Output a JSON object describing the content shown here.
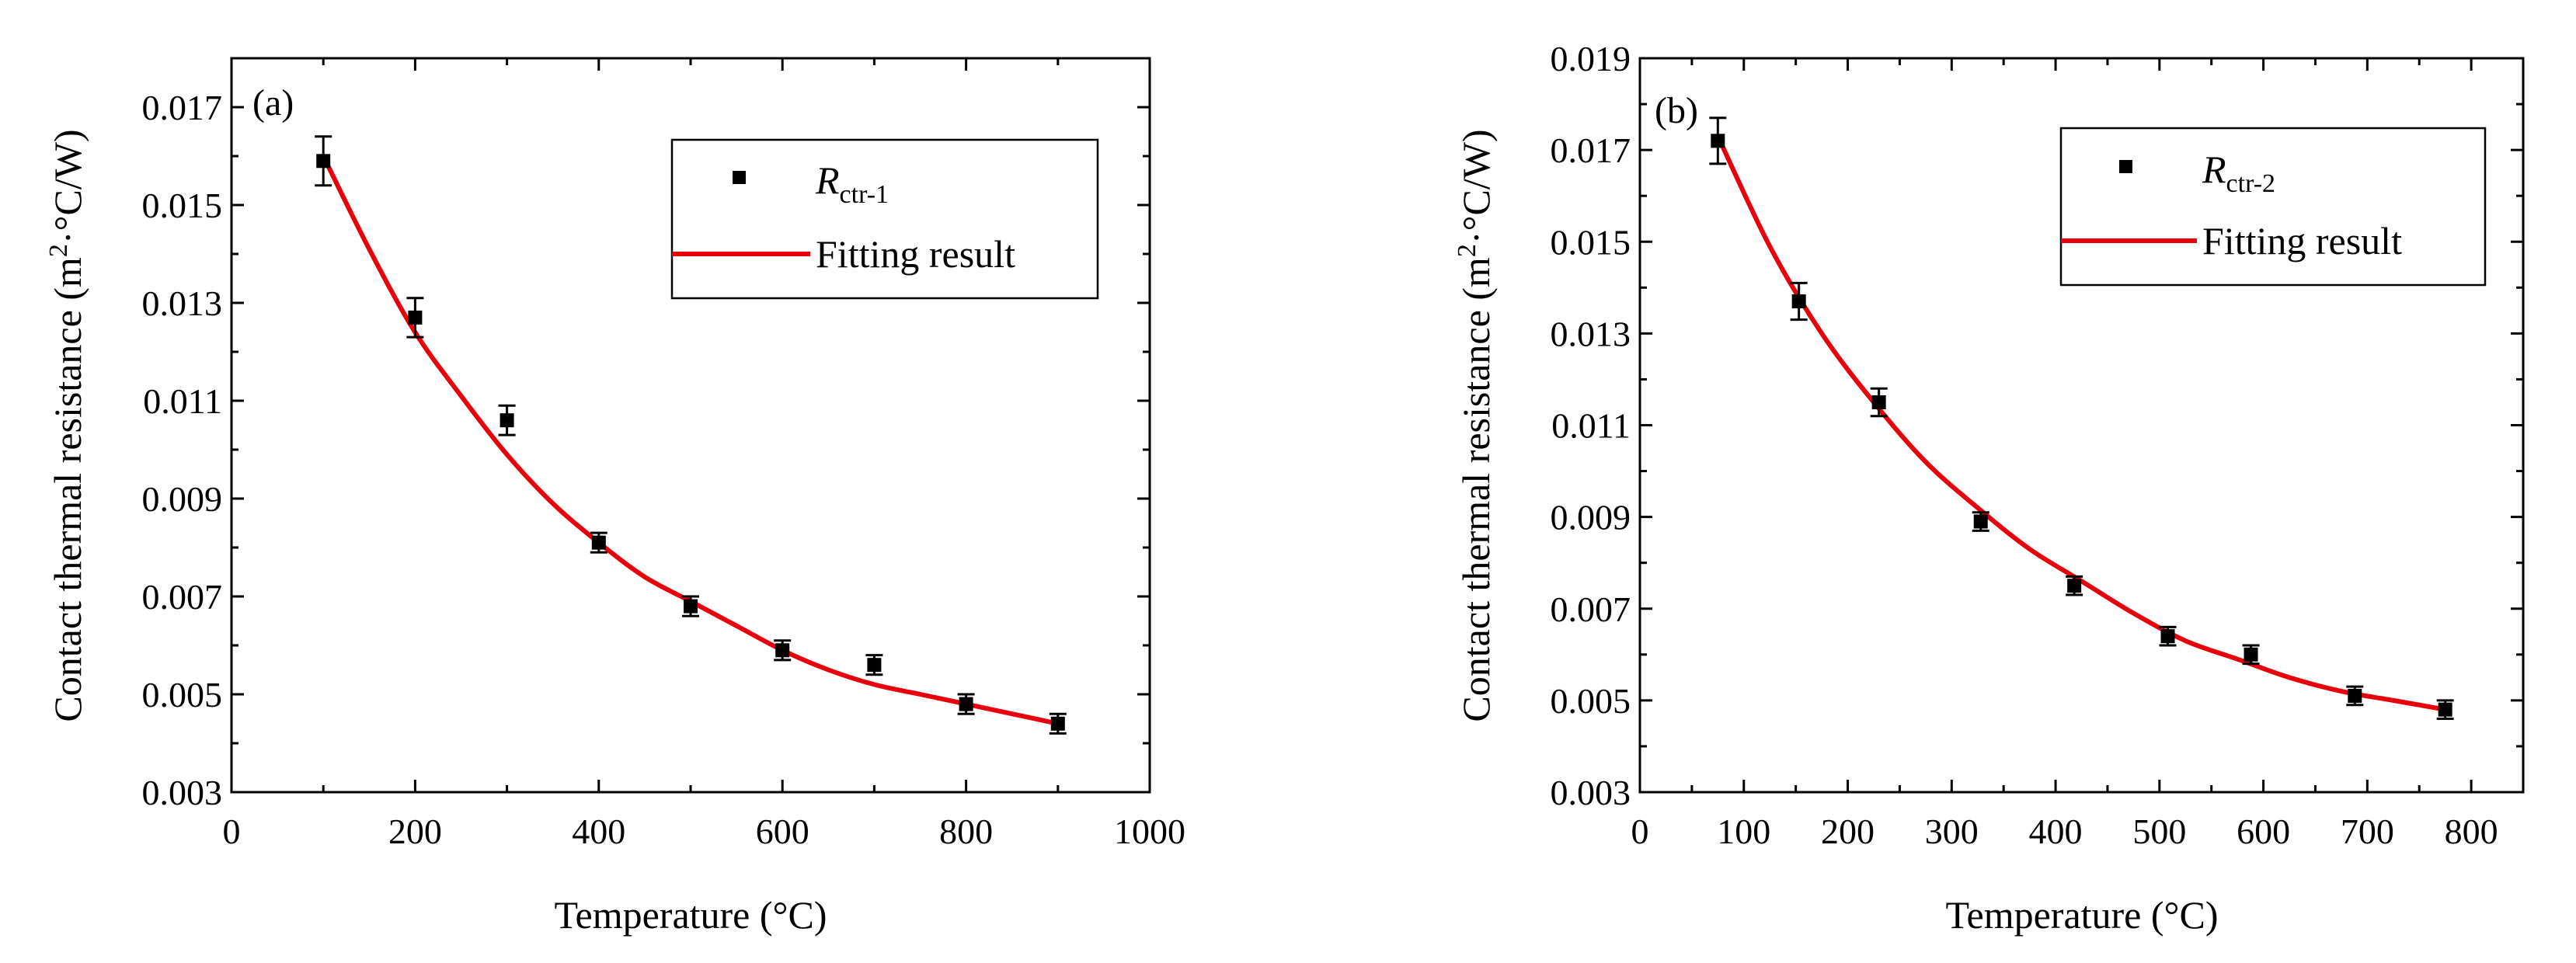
{
  "colors": {
    "fit": "#e8000b",
    "marker": "#000000",
    "axis": "#000000",
    "background": "#ffffff"
  },
  "chart_data": [
    {
      "type": "scatter",
      "panel_label": "(a)",
      "xlabel": "Temperature (°C)",
      "ylabel_main": "Contact thermal resistance (m",
      "ylabel_sup": "2",
      "ylabel_end": "·°C/W)",
      "xlim": [
        0,
        1000
      ],
      "ylim": [
        0.003,
        0.018
      ],
      "xticks": [
        0,
        200,
        400,
        600,
        800,
        1000
      ],
      "xtick_labels": [
        "0",
        "200",
        "400",
        "600",
        "800",
        "1000"
      ],
      "yticks": [
        0.003,
        0.005,
        0.007,
        0.009,
        0.011,
        0.013,
        0.015,
        0.017
      ],
      "ytick_labels": [
        "0.003",
        "0.005",
        "0.007",
        "0.009",
        "0.011",
        "0.013",
        "0.015",
        "0.017"
      ],
      "legend": {
        "series_main": "R",
        "series_sub": "ctr-1",
        "fit_label": "Fitting result",
        "position": "top-right"
      },
      "series": [
        {
          "name": "R ctr-1",
          "x": [
            100,
            200,
            300,
            400,
            500,
            600,
            700,
            800,
            900
          ],
          "y": [
            0.0159,
            0.0127,
            0.0106,
            0.0081,
            0.0068,
            0.0059,
            0.0056,
            0.0048,
            0.0044
          ],
          "err": [
            0.0005,
            0.0004,
            0.0003,
            0.0002,
            0.0002,
            0.0002,
            0.0002,
            0.0002,
            0.0002
          ]
        }
      ],
      "fit": {
        "name": "Fitting result",
        "x": [
          100,
          150,
          200,
          250,
          300,
          350,
          400,
          450,
          500,
          550,
          600,
          650,
          700,
          750,
          800,
          850,
          900
        ],
        "y": [
          0.016,
          0.0141,
          0.0124,
          0.0111,
          0.0099,
          0.0089,
          0.0081,
          0.0074,
          0.0069,
          0.0064,
          0.0059,
          0.0055,
          0.0052,
          0.005,
          0.0048,
          0.0046,
          0.0044
        ]
      }
    },
    {
      "type": "scatter",
      "panel_label": "(b)",
      "xlabel": "Temperature (°C)",
      "ylabel_main": "Contact thermal resistance (m",
      "ylabel_sup": "2",
      "ylabel_end": "·°C/W)",
      "xlim": [
        0,
        850
      ],
      "ylim": [
        0.003,
        0.019
      ],
      "xticks": [
        0,
        100,
        200,
        300,
        400,
        500,
        600,
        700,
        800
      ],
      "xtick_labels": [
        "0",
        "100",
        "200",
        "300",
        "400",
        "500",
        "600",
        "700",
        "800"
      ],
      "yticks": [
        0.003,
        0.005,
        0.007,
        0.009,
        0.011,
        0.013,
        0.015,
        0.017,
        0.019
      ],
      "ytick_labels": [
        "0.003",
        "0.005",
        "0.007",
        "0.009",
        "0.011",
        "0.013",
        "0.015",
        "0.017",
        "0.019"
      ],
      "legend": {
        "series_main": "R",
        "series_sub": "ctr-2",
        "fit_label": "Fitting result",
        "position": "top-right"
      },
      "series": [
        {
          "name": "R ctr-2",
          "x": [
            75,
            153,
            230,
            328,
            418,
            508,
            588,
            688,
            775
          ],
          "y": [
            0.0172,
            0.0137,
            0.0115,
            0.0089,
            0.0075,
            0.0064,
            0.006,
            0.0051,
            0.0048
          ],
          "err": [
            0.0005,
            0.0004,
            0.0003,
            0.0002,
            0.0002,
            0.0002,
            0.0002,
            0.0002,
            0.0002
          ]
        }
      ],
      "fit": {
        "name": "Fitting result",
        "x": [
          75,
          125,
          175,
          225,
          275,
          325,
          375,
          425,
          475,
          525,
          575,
          625,
          675,
          725,
          775
        ],
        "y": [
          0.0173,
          0.0149,
          0.013,
          0.0115,
          0.0102,
          0.0092,
          0.0083,
          0.0076,
          0.0069,
          0.0063,
          0.0059,
          0.0055,
          0.0052,
          0.005,
          0.0048
        ]
      }
    }
  ]
}
